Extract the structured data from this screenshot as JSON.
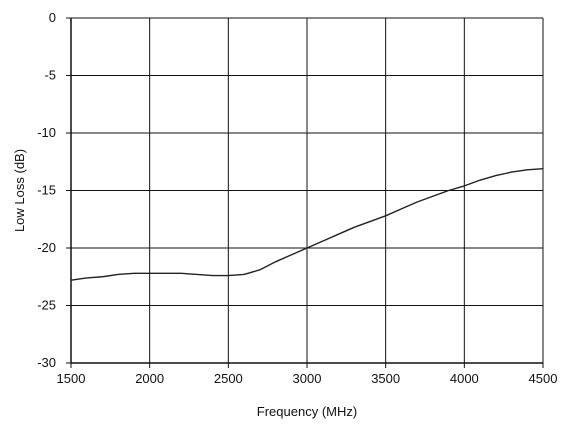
{
  "chart_data": {
    "type": "line",
    "title": "",
    "xlabel": "Frequency (MHz)",
    "ylabel": "Low Loss (dB)",
    "xlim": [
      1500,
      4500
    ],
    "ylim": [
      -30,
      0
    ],
    "x_ticks": [
      1500,
      2000,
      2500,
      3000,
      3500,
      4000,
      4500
    ],
    "y_ticks": [
      0,
      -5,
      -10,
      -15,
      -20,
      -25,
      -30
    ],
    "x_tick_labels": [
      "1500",
      "2000",
      "2500",
      "3000",
      "3500",
      "4000",
      "4500"
    ],
    "y_tick_labels": [
      "0",
      "-5",
      "-10",
      "-15",
      "-20",
      "-25",
      "-30"
    ],
    "grid": true,
    "legend": "none",
    "line_color": "#222222",
    "series": [
      {
        "x": [
          1500,
          1600,
          1700,
          1800,
          1900,
          2000,
          2100,
          2200,
          2300,
          2400,
          2500,
          2600,
          2700,
          2800,
          2900,
          3000,
          3100,
          3200,
          3300,
          3400,
          3500,
          3600,
          3700,
          3800,
          3900,
          4000,
          4100,
          4200,
          4300,
          4400,
          4500
        ],
        "values": [
          -22.8,
          -22.6,
          -22.5,
          -22.3,
          -22.2,
          -22.2,
          -22.2,
          -22.2,
          -22.3,
          -22.4,
          -22.4,
          -22.3,
          -21.9,
          -21.2,
          -20.6,
          -20.0,
          -19.4,
          -18.8,
          -18.2,
          -17.7,
          -17.2,
          -16.6,
          -16.0,
          -15.5,
          -15.0,
          -14.6,
          -14.1,
          -13.7,
          -13.4,
          -13.2,
          -13.1
        ]
      }
    ]
  }
}
